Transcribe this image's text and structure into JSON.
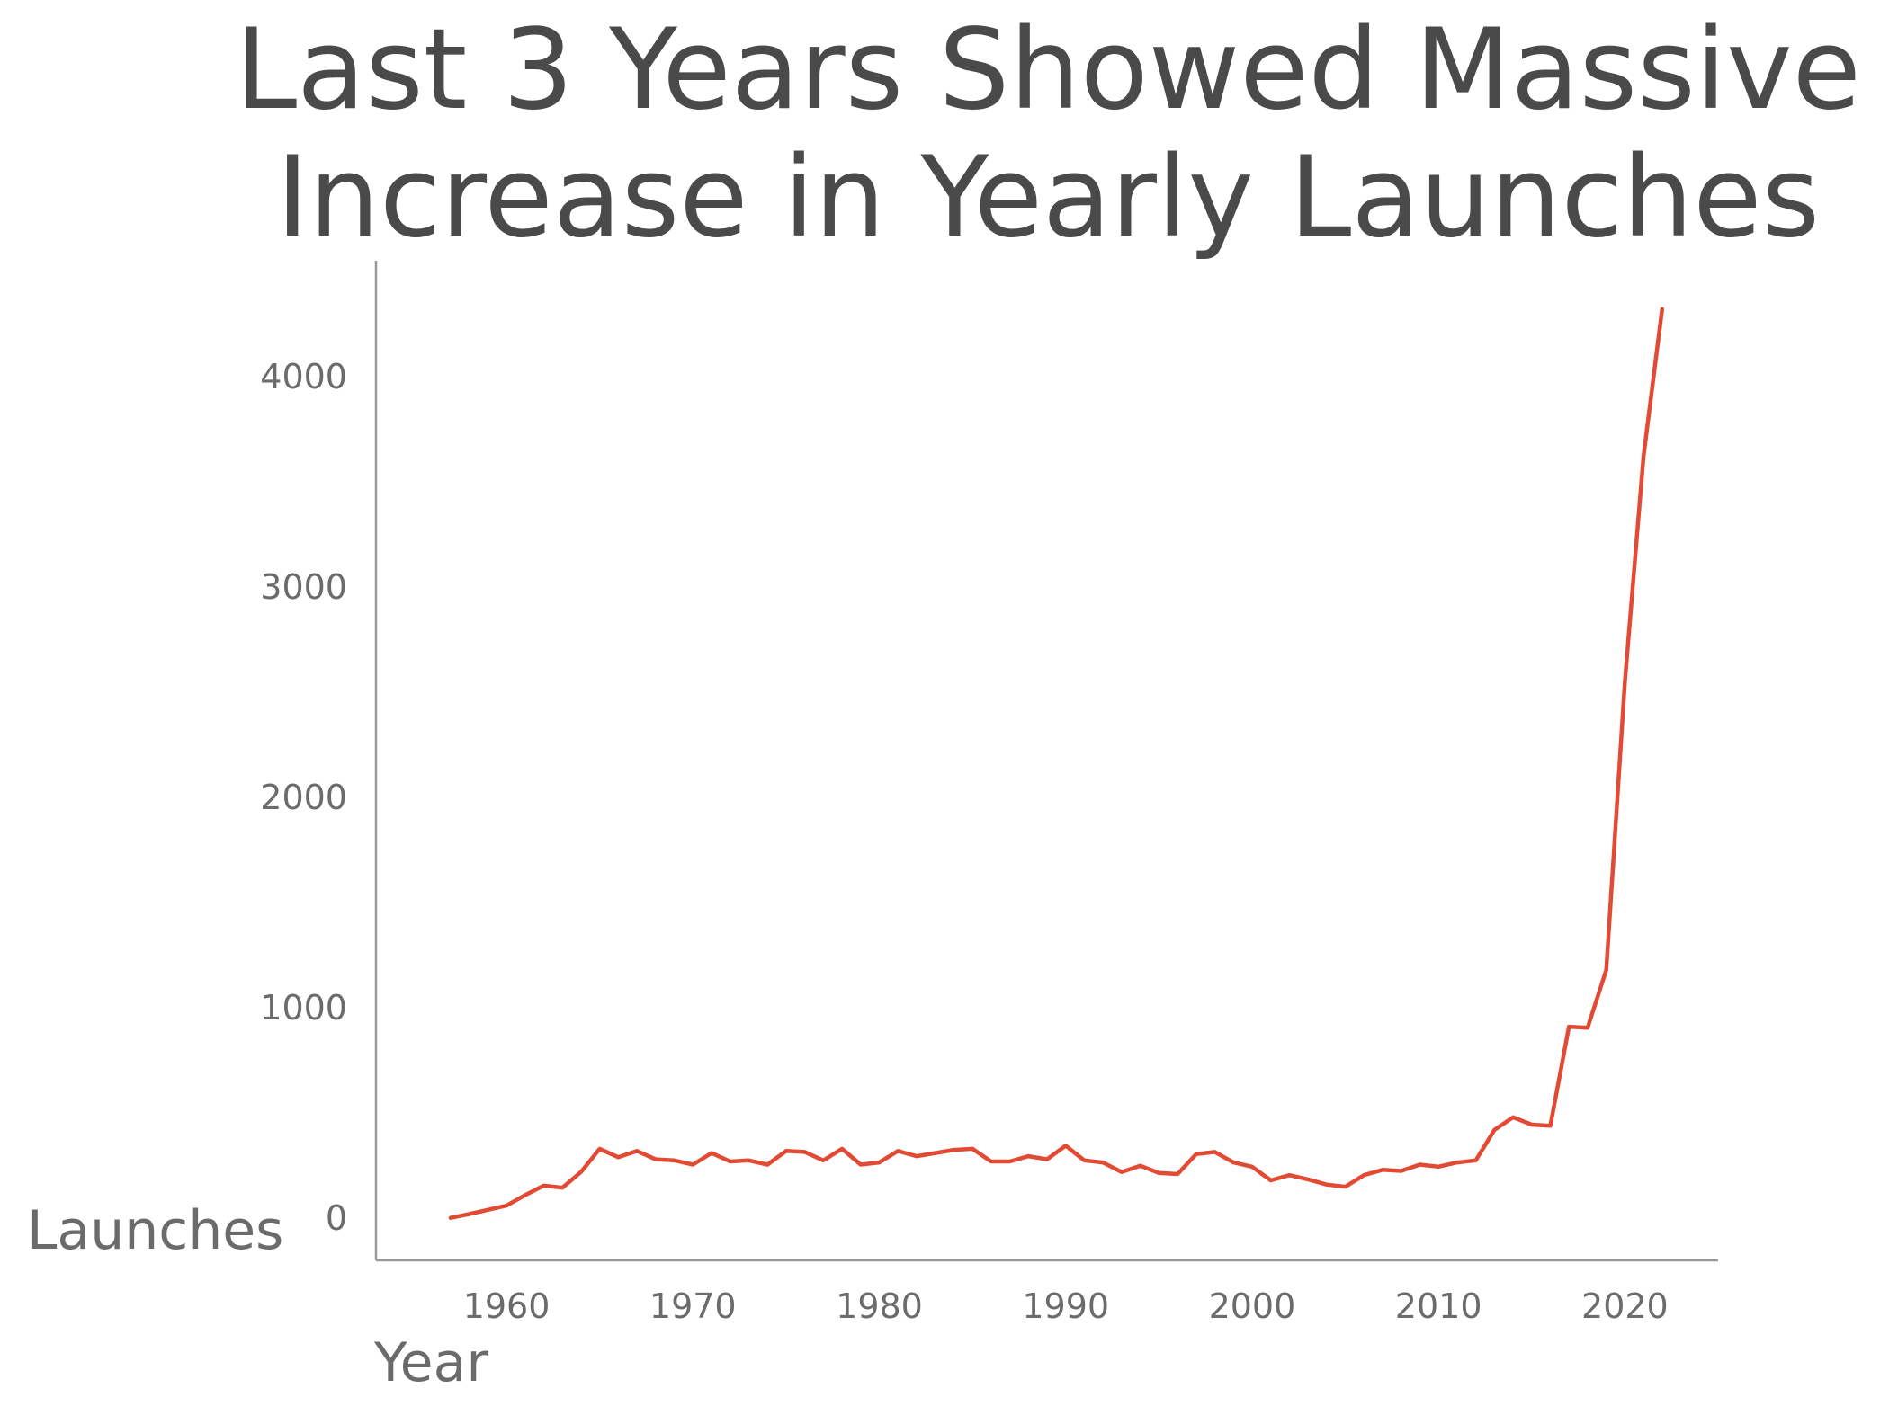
{
  "chart_data": {
    "type": "line",
    "title_lines": [
      "Last 3 Years Showed Massive",
      "Increase in Yearly Launches"
    ],
    "xlabel": "Year",
    "ylabel": "Launches",
    "xlim": [
      1953,
      2025
    ],
    "ylim": [
      -200,
      4550
    ],
    "xticks": [
      1960,
      1970,
      1980,
      1990,
      2000,
      2010,
      2020
    ],
    "yticks": [
      0,
      1000,
      2000,
      3000,
      4000
    ],
    "grid": false,
    "line_color": "#e24a33",
    "axis_color": "#999999",
    "series": [
      {
        "x": [
          1957,
          1958,
          1959,
          1960,
          1961,
          1962,
          1963,
          1964,
          1965,
          1966,
          1967,
          1968,
          1969,
          1970,
          1971,
          1972,
          1973,
          1974,
          1975,
          1976,
          1977,
          1978,
          1979,
          1980,
          1981,
          1982,
          1983,
          1984,
          1985,
          1986,
          1987,
          1988,
          1989,
          1990,
          1991,
          1992,
          1993,
          1994,
          1995,
          1996,
          1997,
          1998,
          1999,
          2000,
          2001,
          2002,
          2003,
          2004,
          2005,
          2006,
          2007,
          2008,
          2009,
          2010,
          2011,
          2012,
          2013,
          2014,
          2015,
          2016,
          2017,
          2018,
          2019,
          2020,
          2021,
          2022
        ],
        "y": [
          2,
          20,
          40,
          60,
          110,
          155,
          145,
          220,
          330,
          290,
          320,
          280,
          275,
          255,
          310,
          270,
          275,
          255,
          320,
          315,
          275,
          330,
          255,
          265,
          320,
          295,
          310,
          325,
          330,
          270,
          270,
          295,
          280,
          345,
          275,
          265,
          220,
          250,
          215,
          210,
          305,
          315,
          265,
          245,
          180,
          205,
          185,
          160,
          150,
          205,
          230,
          225,
          255,
          245,
          265,
          275,
          420,
          480,
          445,
          440,
          910,
          905,
          1180,
          2550,
          3620,
          4320
        ]
      }
    ]
  }
}
